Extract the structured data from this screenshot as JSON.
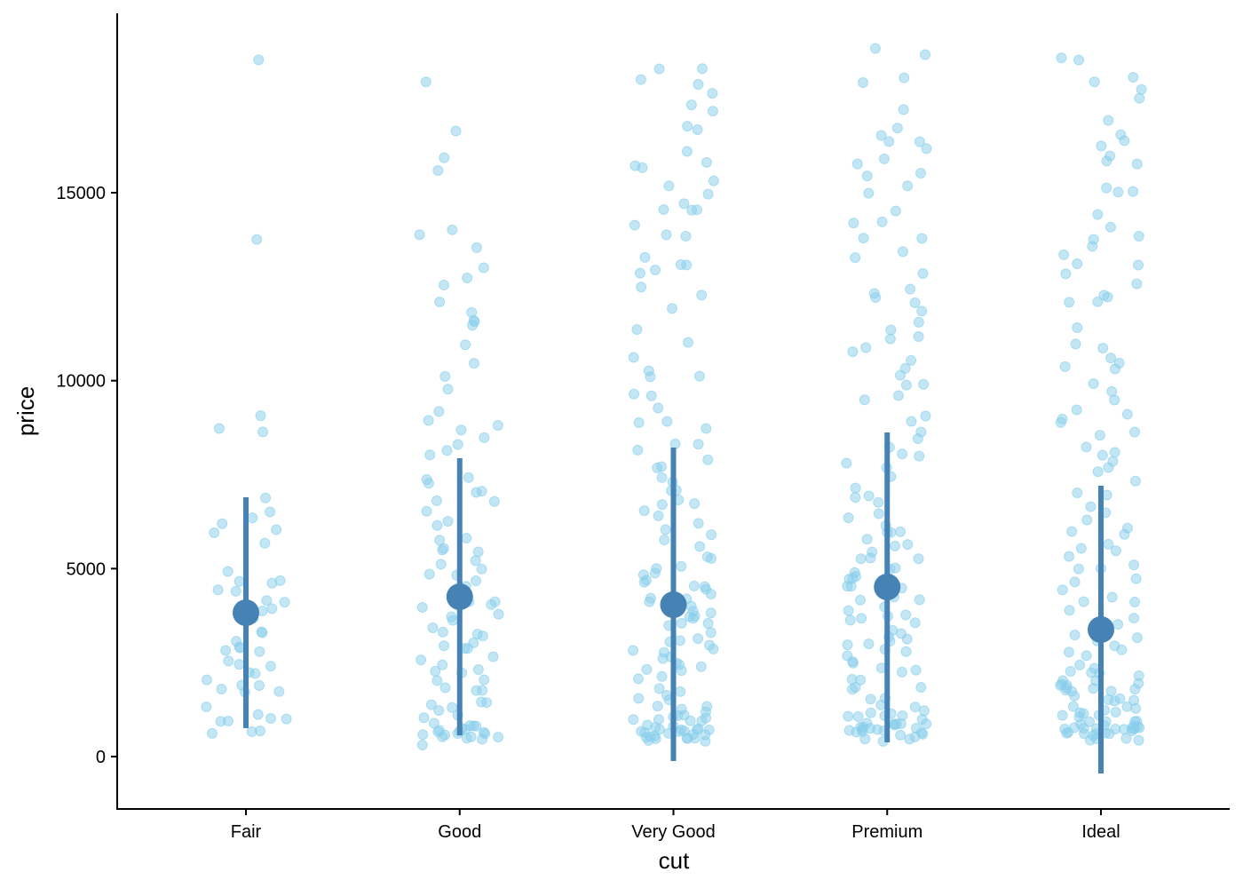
{
  "chart_data": {
    "type": "scatter",
    "subtype": "jittered strip plot with mean ± sd",
    "title": "",
    "xlabel": "cut",
    "ylabel": "price",
    "categories": [
      "Fair",
      "Good",
      "Very Good",
      "Premium",
      "Ideal"
    ],
    "yticks": [
      0,
      5000,
      10000,
      15000
    ],
    "ytick_labels": [
      "0",
      "5000",
      "10000",
      "15000"
    ],
    "ylim": [
      -1394,
      19773
    ],
    "grid": false,
    "colors": {
      "points": "#87CEEB",
      "summary": "#4682B4",
      "axis": "#000000"
    },
    "summary": [
      {
        "cut": "Fair",
        "mean": 3827,
        "ymin": 756,
        "ymax": 6898
      },
      {
        "cut": "Good",
        "mean": 4252,
        "ymin": 567,
        "ymax": 7937
      },
      {
        "cut": "Very Good",
        "mean": 4040,
        "ymin": -118,
        "ymax": 8221
      },
      {
        "cut": "Premium",
        "mean": 4512,
        "ymin": 378,
        "ymax": 8622
      },
      {
        "cut": "Ideal",
        "mean": 3378,
        "ymin": -449,
        "ymax": 7205
      }
    ],
    "points": {
      "Fair": [
        18500,
        13850,
        9100,
        8800,
        8700,
        6850,
        6450,
        6300,
        6250,
        6100,
        5950,
        5650,
        4900,
        4750,
        4650,
        4550,
        4400,
        4400,
        4100,
        4100,
        4000,
        3900,
        3850,
        3800,
        3600,
        3300,
        3250,
        3050,
        3000,
        2800,
        2750,
        2700,
        2500,
        2400,
        2400,
        2300,
        2250,
        2050,
        1900,
        1850,
        1800,
        1800,
        1750,
        1350,
        1100,
        1050,
        1000,
        1000,
        950,
        750,
        700,
        700
      ],
      "Good": [
        17900,
        16700,
        16000,
        15650,
        14000,
        13850,
        13600,
        13100,
        12800,
        12450,
        12100,
        11850,
        11600,
        11550,
        11500,
        10900,
        10450,
        10150,
        9750,
        9150,
        8950,
        8850,
        8750,
        8450,
        8300,
        8100,
        8050,
        7400,
        7300,
        7200,
        7100,
        7000,
        6800,
        6750,
        6600,
        6350,
        6100,
        5900,
        5800,
        5600,
        5500,
        5450,
        5250,
        5050,
        4900,
        4850,
        4800,
        4700,
        4500,
        4400,
        4300,
        4200,
        4100,
        4000,
        3950,
        3800,
        3700,
        3600,
        3500,
        3400,
        3350,
        3200,
        3100,
        3000,
        2900,
        2800,
        2700,
        2600,
        2500,
        2400,
        2300,
        2200,
        2100,
        2000,
        1900,
        1800,
        1700,
        1500,
        1400,
        1300,
        1200,
        1100,
        1000,
        900,
        800,
        750,
        700,
        650,
        600,
        550,
        500,
        500,
        450,
        400,
        700,
        600,
        900,
        1300,
        550,
        650,
        750,
        850,
        480,
        520
      ],
      "Very Good": [
        18300,
        18200,
        18100,
        17900,
        17700,
        17400,
        17200,
        16700,
        16650,
        16100,
        15800,
        15750,
        15600,
        15300,
        15100,
        14950,
        14800,
        14600,
        14500,
        14450,
        14200,
        13950,
        13800,
        13200,
        13100,
        13000,
        12900,
        12800,
        12450,
        12200,
        12000,
        11400,
        11000,
        10550,
        10300,
        10150,
        10100,
        9650,
        9600,
        9250,
        8900,
        8800,
        8650,
        8400,
        8250,
        8100,
        7950,
        7800,
        7600,
        7450,
        7300,
        7100,
        7000,
        6900,
        6800,
        6700,
        6550,
        6400,
        6200,
        6100,
        5900,
        5750,
        5600,
        5400,
        5200,
        5100,
        5000,
        4900,
        4800,
        4700,
        4600,
        4500,
        4400,
        4300,
        4200,
        4100,
        4000,
        3900,
        3800,
        3700,
        3600,
        3500,
        3400,
        3300,
        3200,
        3100,
        3000,
        2900,
        2800,
        2700,
        2600,
        2500,
        2400,
        2300,
        2200,
        2100,
        2000,
        1900,
        1800,
        1700,
        1600,
        1500,
        1400,
        1300,
        1200,
        1100,
        1000,
        950,
        900,
        850,
        800,
        750,
        700,
        700,
        650,
        650,
        600,
        600,
        550,
        550,
        500,
        500,
        450,
        450,
        400,
        1000,
        900,
        800,
        700,
        600,
        500,
        750,
        650,
        550,
        850,
        950,
        1150,
        1250,
        2350,
        2650,
        2950,
        3450,
        3750,
        4250,
        4550
      ],
      "Premium": [
        18800,
        18700,
        18100,
        17900,
        17300,
        16700,
        16600,
        16400,
        16300,
        16200,
        15900,
        15800,
        15600,
        15500,
        15100,
        15000,
        14500,
        14200,
        14200,
        13800,
        13700,
        13500,
        13300,
        12900,
        12400,
        12300,
        12200,
        12000,
        11800,
        11600,
        11400,
        11200,
        11150,
        10800,
        10700,
        10500,
        10300,
        10100,
        9900,
        9850,
        9600,
        9400,
        9100,
        8900,
        8700,
        8500,
        8300,
        8100,
        7900,
        7800,
        7600,
        7400,
        7200,
        7000,
        6900,
        6700,
        6500,
        6300,
        6100,
        6000,
        5900,
        5800,
        5600,
        5400,
        5300,
        5200,
        5100,
        5000,
        4900,
        4800,
        4700,
        4600,
        4500,
        4400,
        4300,
        4200,
        4100,
        4000,
        3900,
        3800,
        3700,
        3600,
        3500,
        3400,
        3300,
        3200,
        3100,
        3000,
        2900,
        2800,
        2700,
        2600,
        2500,
        2400,
        2300,
        2200,
        2100,
        2000,
        1900,
        1800,
        1700,
        1600,
        1500,
        1400,
        1300,
        1200,
        1100,
        1050,
        1000,
        950,
        900,
        850,
        800,
        800,
        750,
        750,
        700,
        700,
        650,
        650,
        600,
        600,
        550,
        550,
        500,
        450,
        1000,
        900,
        850,
        950,
        1100,
        750,
        700,
        650,
        850,
        1000,
        5200,
        4800,
        4400,
        5600,
        6000,
        3600,
        3000,
        2600
      ],
      "Ideal": [
        18600,
        18500,
        18100,
        17900,
        17800,
        17600,
        17000,
        16600,
        16300,
        16200,
        15900,
        15800,
        15700,
        15150,
        15100,
        15000,
        14400,
        14100,
        13900,
        13700,
        13600,
        13400,
        13200,
        13100,
        12900,
        12500,
        12300,
        12200,
        12100,
        12000,
        11500,
        11000,
        10900,
        10600,
        10500,
        10400,
        10300,
        10000,
        9700,
        9400,
        9200,
        9100,
        9000,
        8900,
        8700,
        8500,
        8300,
        8100,
        8000,
        7900,
        7700,
        7500,
        7300,
        7100,
        6900,
        6700,
        6500,
        6300,
        6100,
        5900,
        5700,
        5500,
        5300,
        5100,
        4900,
        4700,
        4500,
        4300,
        4100,
        3900,
        3700,
        3500,
        3300,
        3100,
        2900,
        2700,
        2500,
        2300,
        2100,
        2000,
        1900,
        1800,
        1700,
        1600,
        1500,
        1400,
        1300,
        1200,
        1100,
        1050,
        1000,
        950,
        900,
        850,
        800,
        800,
        750,
        750,
        700,
        700,
        650,
        650,
        600,
        600,
        550,
        550,
        500,
        500,
        450,
        400,
        2200,
        2000,
        1800,
        1600,
        1400,
        1200,
        1000,
        900,
        800,
        700,
        600,
        2100,
        1900,
        1700,
        1500,
        1300,
        1100,
        950,
        850,
        750,
        650,
        550,
        2400,
        2300,
        1950,
        1850,
        1650,
        1150,
        3200,
        2800,
        2600,
        3400,
        4200,
        4600,
        5000,
        5400,
        6000
      ]
    }
  }
}
